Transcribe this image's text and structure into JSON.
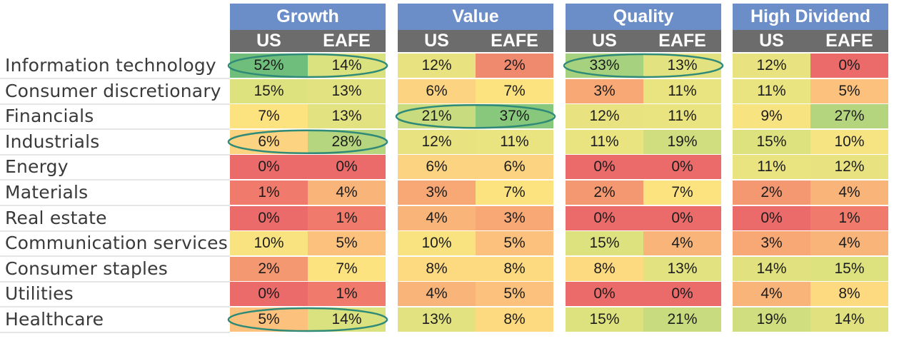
{
  "chart_data": {
    "type": "heatmap",
    "groups": [
      {
        "name": "Growth",
        "subcolumns": [
          "US",
          "EAFE"
        ]
      },
      {
        "name": "Value",
        "subcolumns": [
          "US",
          "EAFE"
        ]
      },
      {
        "name": "Quality",
        "subcolumns": [
          "US",
          "EAFE"
        ]
      },
      {
        "name": "High Dividend",
        "subcolumns": [
          "US",
          "EAFE"
        ]
      }
    ],
    "rows": [
      "Information technology",
      "Consumer discretionary",
      "Financials",
      "Industrials",
      "Energy",
      "Materials",
      "Real estate",
      "Communication services",
      "Consumer staples",
      "Utilities",
      "Healthcare"
    ],
    "values": [
      [
        "52%",
        "14%",
        "12%",
        "2%",
        "33%",
        "13%",
        "12%",
        "0%"
      ],
      [
        "15%",
        "13%",
        "6%",
        "7%",
        "3%",
        "11%",
        "11%",
        "5%"
      ],
      [
        "7%",
        "13%",
        "21%",
        "37%",
        "12%",
        "11%",
        "9%",
        "27%"
      ],
      [
        "6%",
        "28%",
        "12%",
        "11%",
        "11%",
        "19%",
        "15%",
        "10%"
      ],
      [
        "0%",
        "0%",
        "6%",
        "6%",
        "0%",
        "0%",
        "11%",
        "12%"
      ],
      [
        "1%",
        "4%",
        "3%",
        "7%",
        "2%",
        "7%",
        "2%",
        "4%"
      ],
      [
        "0%",
        "1%",
        "4%",
        "3%",
        "0%",
        "0%",
        "0%",
        "1%"
      ],
      [
        "10%",
        "5%",
        "10%",
        "5%",
        "15%",
        "4%",
        "3%",
        "4%"
      ],
      [
        "2%",
        "7%",
        "8%",
        "8%",
        "8%",
        "13%",
        "14%",
        "15%"
      ],
      [
        "0%",
        "1%",
        "4%",
        "5%",
        "0%",
        "0%",
        "4%",
        "8%"
      ],
      [
        "5%",
        "14%",
        "13%",
        "8%",
        "15%",
        "21%",
        "19%",
        "14%"
      ]
    ],
    "cell_colors": [
      [
        "#6fbe7c",
        "#dae27f",
        "#e8e380",
        "#f08a6f",
        "#a6d17e",
        "#e3e280",
        "#e8e380",
        "#eb6a6a"
      ],
      [
        "#dde27f",
        "#e3e280",
        "#fcd481",
        "#fde380",
        "#f8a874",
        "#e9e380",
        "#e9e380",
        "#fcc27d"
      ],
      [
        "#fde380",
        "#e3e280",
        "#c8db7e",
        "#87c87d",
        "#e8e380",
        "#e9e380",
        "#f7e380",
        "#b4d57e"
      ],
      [
        "#fcd481",
        "#b5d57e",
        "#e8e380",
        "#e9e380",
        "#e9e380",
        "#d1de7f",
        "#dde27f",
        "#f5e481"
      ],
      [
        "#eb6a6a",
        "#eb6a6a",
        "#fcd481",
        "#fcd481",
        "#eb6a6a",
        "#eb6a6a",
        "#e9e380",
        "#e8e380"
      ],
      [
        "#f07b6c",
        "#f9b479",
        "#f8a874",
        "#fde380",
        "#f49872",
        "#fde380",
        "#f49872",
        "#f9b479"
      ],
      [
        "#eb6a6a",
        "#f07b6c",
        "#f9b479",
        "#f8a874",
        "#eb6a6a",
        "#eb6a6a",
        "#eb6a6a",
        "#f07b6c"
      ],
      [
        "#f9e380",
        "#fcc27d",
        "#f9e380",
        "#fcc27d",
        "#dde27f",
        "#f9b479",
        "#f8a874",
        "#f9b479"
      ],
      [
        "#f49872",
        "#fde380",
        "#fdd980",
        "#fdd980",
        "#fdd980",
        "#e3e280",
        "#e1e27f",
        "#dde27f"
      ],
      [
        "#eb6a6a",
        "#f07b6c",
        "#f9b479",
        "#fcc27d",
        "#eb6a6a",
        "#eb6a6a",
        "#f9b479",
        "#fdd980"
      ],
      [
        "#fcc27d",
        "#dae27f",
        "#e3e280",
        "#fdd980",
        "#dde27f",
        "#c8db7e",
        "#d1de7f",
        "#e1e27f"
      ]
    ],
    "highlighted": [
      {
        "row": 0,
        "cols": [
          0,
          1
        ]
      },
      {
        "row": 0,
        "cols": [
          4,
          5
        ]
      },
      {
        "row": 2,
        "cols": [
          2,
          3
        ]
      },
      {
        "row": 3,
        "cols": [
          0,
          1
        ]
      },
      {
        "row": 10,
        "cols": [
          0,
          1
        ]
      }
    ],
    "colors": {
      "group_header": "#6c8ec8",
      "sub_header": "#6c6c6c",
      "oval": "#2f8a77"
    }
  }
}
